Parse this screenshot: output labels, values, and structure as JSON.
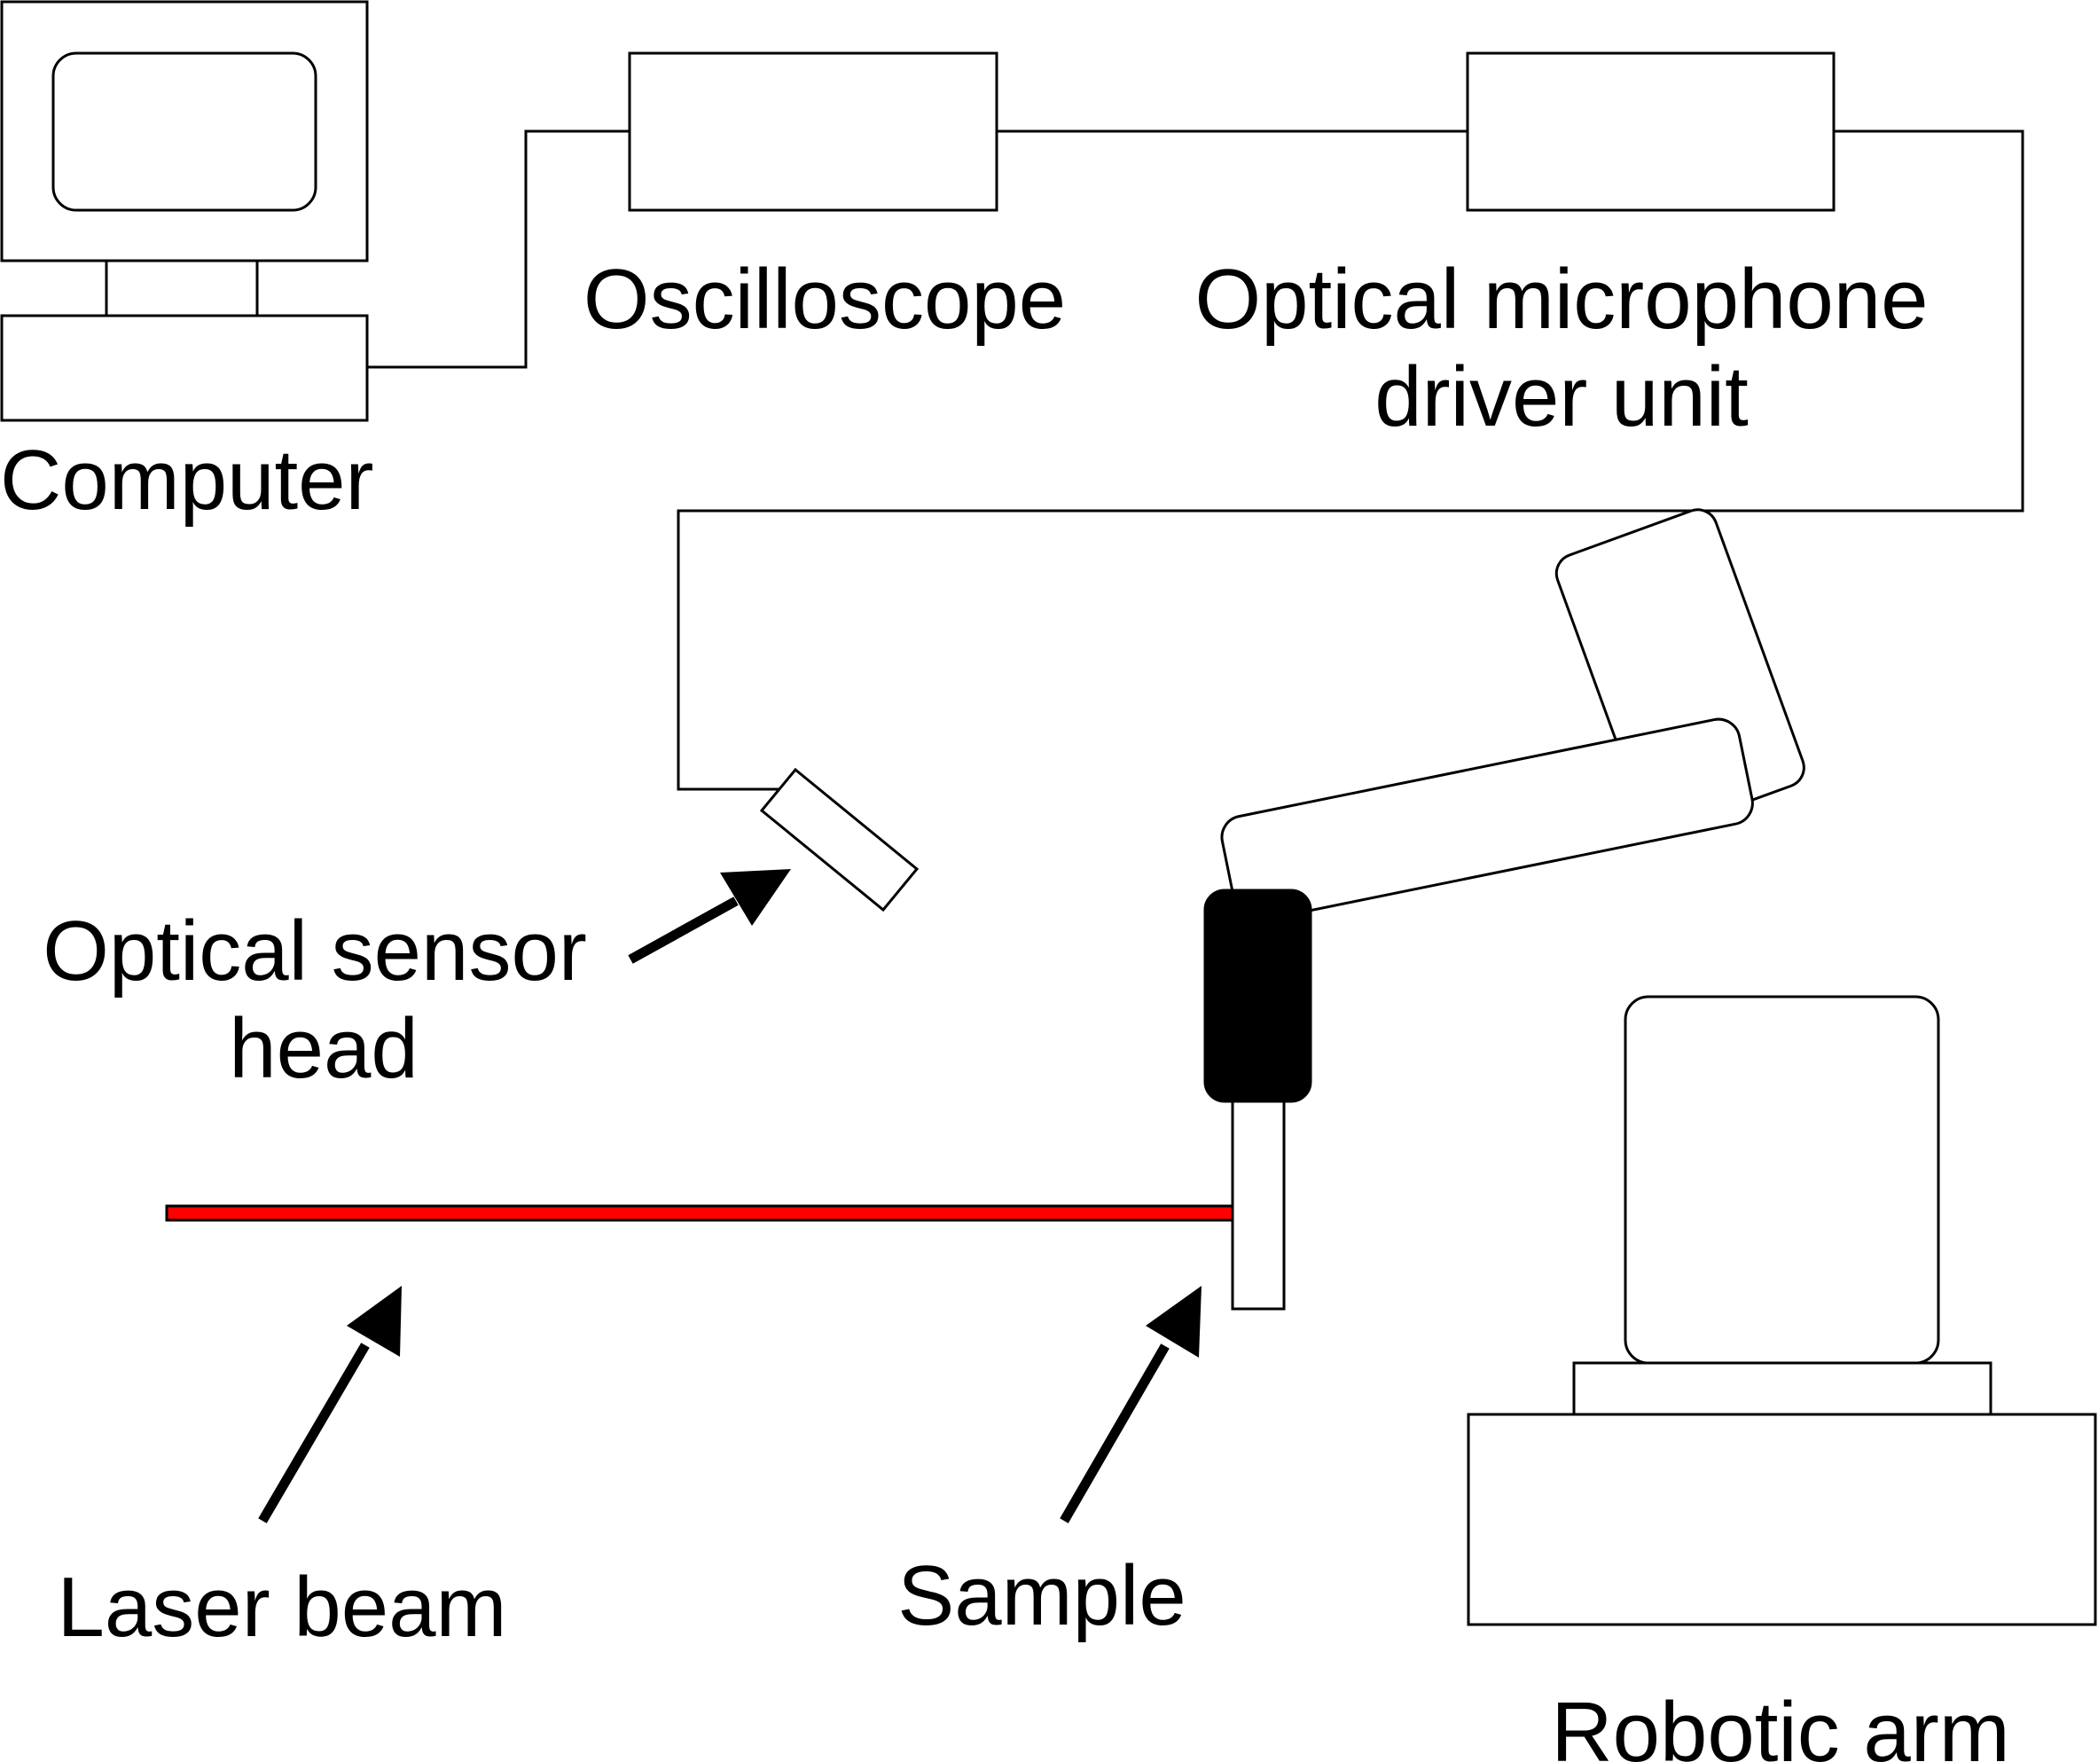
{
  "labels": {
    "computer": "Computer",
    "oscilloscope": "Oscilloscope",
    "driver_line1": "Optical microphone",
    "driver_line2": "driver unit",
    "sensor_line1": "Optical sensor",
    "sensor_line2": "head",
    "laser": "Laser beam",
    "sample": "Sample",
    "robot": "Robotic arm"
  },
  "colors": {
    "line": "#000000",
    "laser": "#ff0000",
    "gripper": "#000000",
    "background": "#ffffff"
  }
}
